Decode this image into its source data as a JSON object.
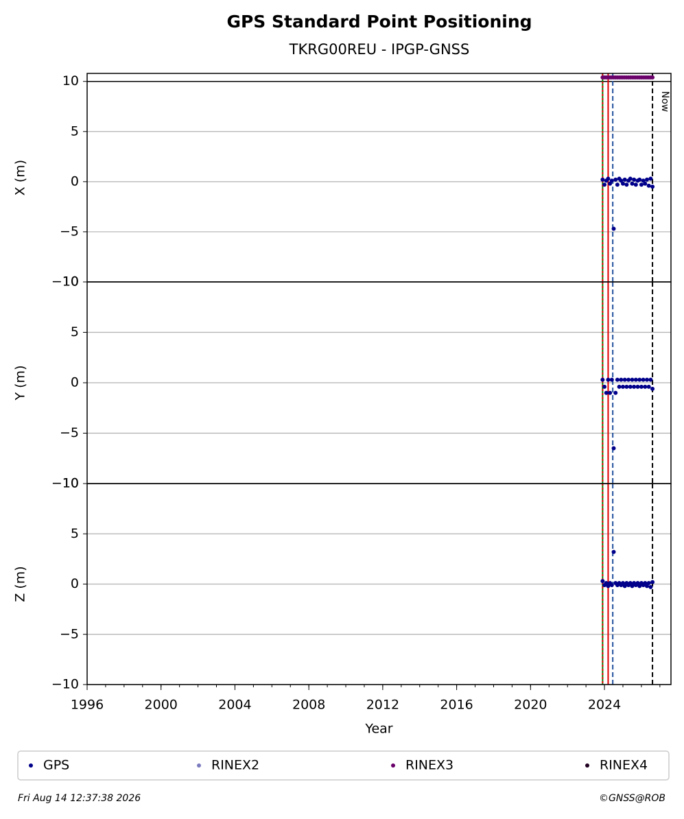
{
  "title": "GPS Standard Point Positioning",
  "subtitle": "TKRG00REU - IPGP-GNSS",
  "footer_left": "Fri Aug 14 12:37:38 2026",
  "footer_right": "©GNSS@ROB",
  "vlines": [
    {
      "x": 2023.9,
      "color": "#008000",
      "style": "solid"
    },
    {
      "x": 2023.9,
      "color": "#e00000",
      "style": "dotted"
    },
    {
      "x": 2024.2,
      "color": "#e00000",
      "style": "solid"
    },
    {
      "x": 2024.45,
      "color": "#1f4e9c",
      "style": "dashed"
    },
    {
      "x": 2026.6,
      "color": "#000000",
      "style": "dashed",
      "label": "Now"
    }
  ],
  "chart_data": [
    {
      "type": "scatter",
      "ylabel": "X (m)",
      "xlim": [
        1996,
        2027.6
      ],
      "ylim": [
        -10,
        10.8
      ],
      "hline": 10,
      "grid": true,
      "yticks": [
        {
          "value": -10,
          "label": "−10"
        },
        {
          "value": -5,
          "label": "−5"
        },
        0,
        5,
        10
      ],
      "x": [
        2023.9,
        2024.0,
        2024.1,
        2024.2,
        2024.3,
        2024.4,
        2024.5,
        2024.6,
        2024.7,
        2024.8,
        2024.9,
        2025.0,
        2025.1,
        2025.2,
        2025.3,
        2025.4,
        2025.5,
        2025.6,
        2025.7,
        2025.8,
        2025.9,
        2026.0,
        2026.1,
        2026.2,
        2026.3,
        2026.4,
        2026.5,
        2026.6
      ],
      "series": [
        {
          "name": "GPS",
          "color": "#00008b",
          "values": [
            0.2,
            -0.3,
            0.1,
            0.3,
            -0.2,
            0.1,
            -4.7,
            0.2,
            -0.3,
            0.3,
            0.1,
            -0.2,
            0.2,
            -0.3,
            0.1,
            0.3,
            -0.2,
            0.2,
            -0.3,
            0.1,
            0.2,
            -0.3,
            0.1,
            -0.2,
            0.2,
            -0.4,
            0.3,
            -0.5
          ]
        },
        {
          "name": "RINEX2",
          "color": "#7b7bbf",
          "values": [
            null,
            null,
            null,
            null,
            null,
            null,
            null,
            null,
            null,
            null,
            null,
            null,
            null,
            null,
            null,
            null,
            null,
            null,
            null,
            null,
            null,
            null,
            null,
            null,
            null,
            null,
            null,
            null
          ]
        },
        {
          "name": "RINEX3",
          "color": "#6a006a",
          "values": [
            10.4,
            10.4,
            10.4,
            10.4,
            10.4,
            10.4,
            10.4,
            10.4,
            10.4,
            10.4,
            10.4,
            10.4,
            10.4,
            10.4,
            10.4,
            10.4,
            10.4,
            10.4,
            10.4,
            10.4,
            10.4,
            10.4,
            10.4,
            10.4,
            10.4,
            10.4,
            10.4,
            10.4
          ]
        },
        {
          "name": "RINEX4",
          "color": "#200020",
          "values": [
            null,
            null,
            null,
            null,
            null,
            null,
            null,
            null,
            null,
            null,
            null,
            null,
            null,
            null,
            null,
            null,
            null,
            null,
            null,
            null,
            null,
            null,
            null,
            null,
            null,
            null,
            null,
            null
          ]
        }
      ]
    },
    {
      "type": "scatter",
      "ylabel": "Y (m)",
      "xlim": [
        1996,
        2027.6
      ],
      "ylim": [
        -10,
        10
      ],
      "grid": true,
      "color": "#00008b",
      "yticks": [
        {
          "value": -10,
          "label": "−10"
        },
        {
          "value": -5,
          "label": "−5"
        },
        0,
        5,
        10
      ],
      "x": [
        2023.9,
        2024.0,
        2024.1,
        2024.2,
        2024.3,
        2024.4,
        2024.5,
        2024.6,
        2024.7,
        2024.8,
        2024.9,
        2025.0,
        2025.1,
        2025.2,
        2025.3,
        2025.4,
        2025.5,
        2025.6,
        2025.7,
        2025.8,
        2025.9,
        2026.0,
        2026.1,
        2026.2,
        2026.3,
        2026.4,
        2026.5,
        2026.6
      ],
      "values": [
        0.3,
        -0.4,
        -1.0,
        0.3,
        -1.0,
        0.3,
        -6.5,
        -1.0,
        0.3,
        -0.4,
        0.3,
        -0.4,
        0.3,
        -0.4,
        0.3,
        -0.4,
        0.3,
        -0.4,
        0.3,
        -0.4,
        0.3,
        -0.4,
        0.3,
        -0.4,
        0.3,
        -0.4,
        0.3,
        -0.6
      ]
    },
    {
      "type": "scatter",
      "ylabel": "Z (m)",
      "xlabel": "Year",
      "xlim": [
        1996,
        2027.6
      ],
      "ylim": [
        -10,
        10
      ],
      "grid": true,
      "color": "#00008b",
      "yticks": [
        {
          "value": -10,
          "label": "−10"
        },
        {
          "value": -5,
          "label": "−5"
        },
        0,
        5,
        10
      ],
      "xticks": [
        1996,
        2000,
        2004,
        2008,
        2012,
        2016,
        2020,
        2024
      ],
      "x": [
        2023.9,
        2024.0,
        2024.1,
        2024.2,
        2024.3,
        2024.4,
        2024.5,
        2024.6,
        2024.7,
        2024.8,
        2024.9,
        2025.0,
        2025.1,
        2025.2,
        2025.3,
        2025.4,
        2025.5,
        2025.6,
        2025.7,
        2025.8,
        2025.9,
        2026.0,
        2026.1,
        2026.2,
        2026.3,
        2026.4,
        2026.5,
        2026.6
      ],
      "values": [
        0.3,
        -0.1,
        0.1,
        -0.2,
        0.1,
        -0.1,
        3.2,
        0.1,
        -0.1,
        0.1,
        -0.1,
        0.1,
        -0.2,
        0.1,
        -0.1,
        0.1,
        -0.2,
        0.1,
        -0.1,
        0.1,
        -0.2,
        0.1,
        -0.1,
        0.1,
        -0.2,
        0.1,
        -0.3,
        0.2
      ]
    }
  ]
}
